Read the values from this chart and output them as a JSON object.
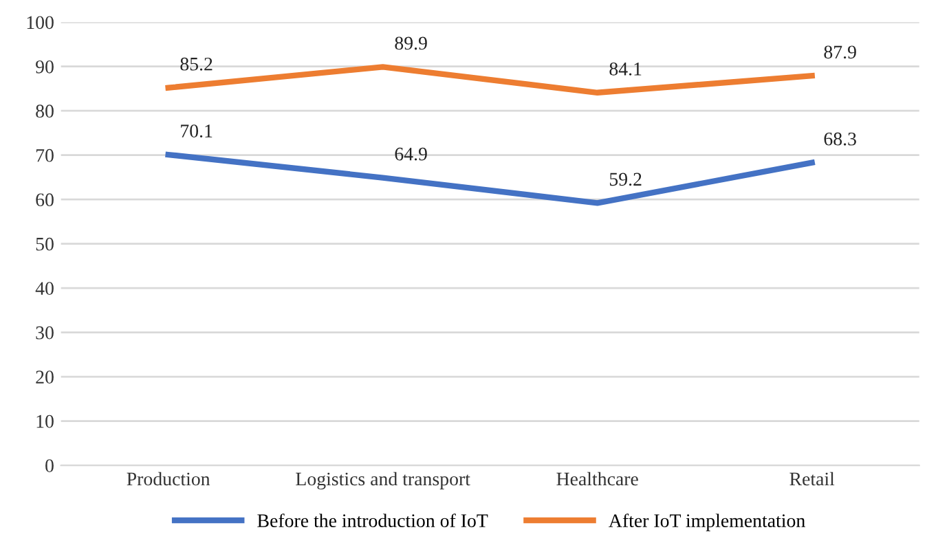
{
  "chart_data": {
    "type": "line",
    "categories": [
      "Production",
      "Logistics and transport",
      "Healthcare",
      "Retail"
    ],
    "series": [
      {
        "name": "Before the introduction of IoT",
        "color": "#4472c4",
        "values": [
          70.1,
          64.9,
          59.2,
          68.3
        ]
      },
      {
        "name": "After IoT implementation",
        "color": "#ed7d31",
        "values": [
          85.2,
          89.9,
          84.1,
          87.9
        ]
      }
    ],
    "ylim": [
      0,
      100
    ],
    "yticks": [
      0,
      10,
      20,
      30,
      40,
      50,
      60,
      70,
      80,
      90,
      100
    ],
    "grid": "y",
    "legend": "bottom",
    "data_labels": true,
    "marker": "none",
    "line_style": "solid"
  }
}
